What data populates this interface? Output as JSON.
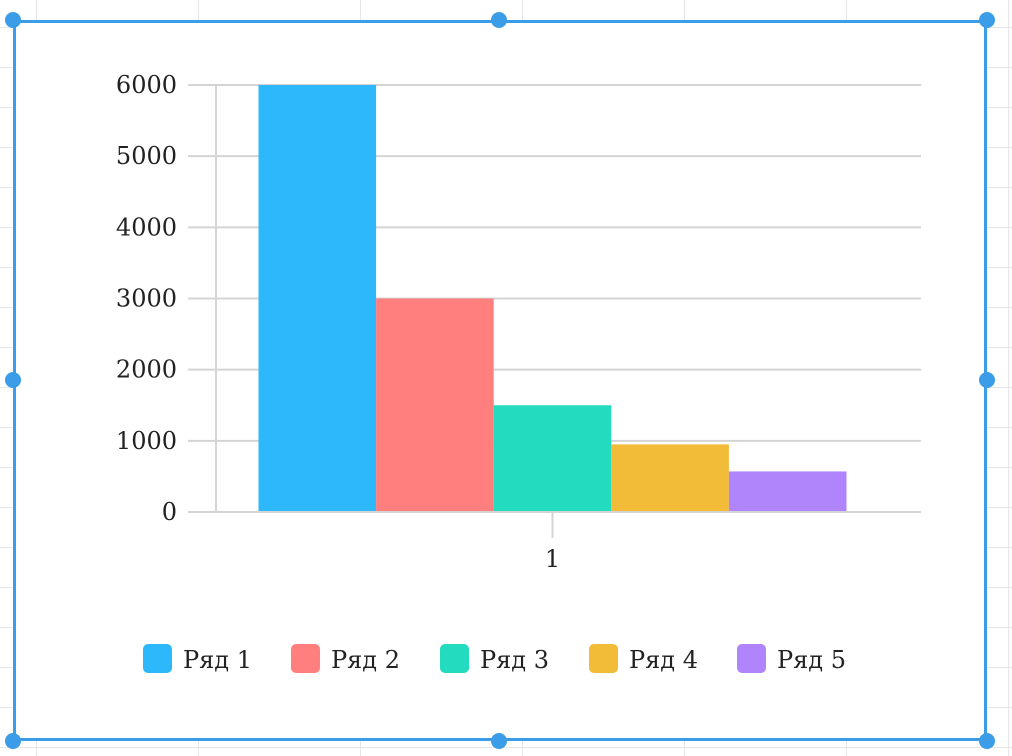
{
  "chart_data": {
    "type": "bar",
    "title": "",
    "xlabel": "",
    "ylabel": "",
    "categories": [
      "1"
    ],
    "ylim": [
      0,
      6000
    ],
    "yticks": [
      0,
      1000,
      2000,
      3000,
      4000,
      5000,
      6000
    ],
    "grid": true,
    "legend_position": "bottom",
    "series": [
      {
        "name": "Ряд 1",
        "values": [
          6000
        ],
        "color": "#2db8fb"
      },
      {
        "name": "Ряд 2",
        "values": [
          3000
        ],
        "color": "#ff7f7f"
      },
      {
        "name": "Ряд 3",
        "values": [
          1500
        ],
        "color": "#23dbbe"
      },
      {
        "name": "Ряд 4",
        "values": [
          950
        ],
        "color": "#f2bc38"
      },
      {
        "name": "Ряд 5",
        "values": [
          570
        ],
        "color": "#b084fa"
      }
    ]
  },
  "colors": {
    "selection": "#3b9ce8",
    "gridline": "#d4d4d4",
    "sheet_grid": "#e6e6e6"
  }
}
